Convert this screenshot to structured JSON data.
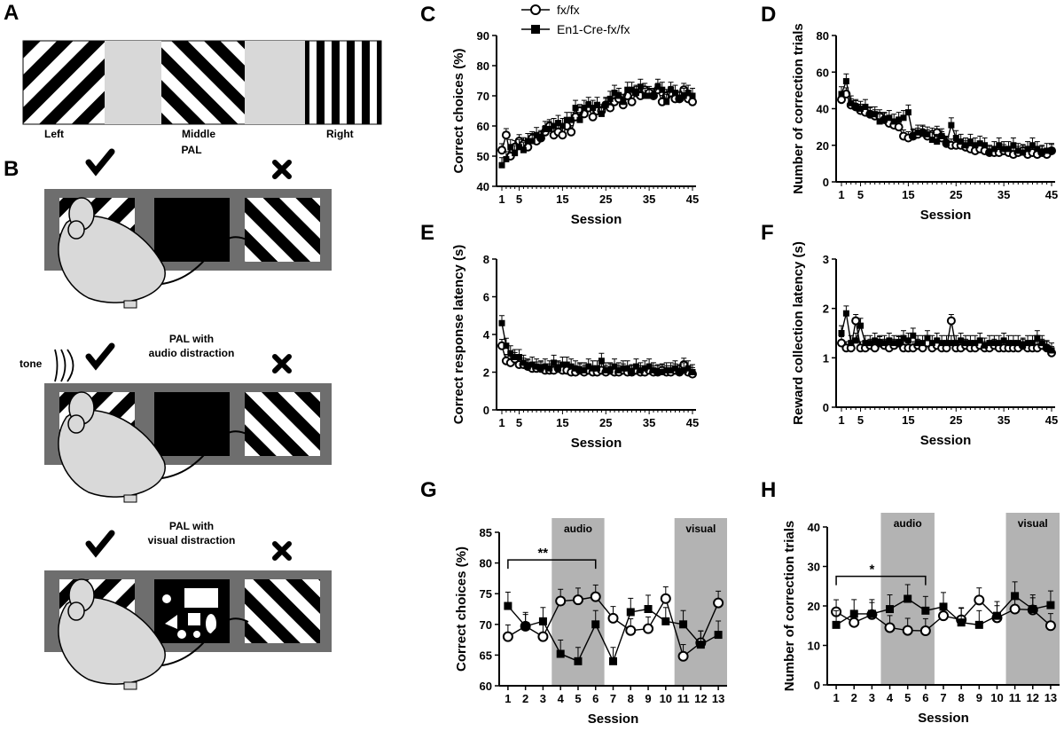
{
  "panel_letters": {
    "A": "A",
    "B": "B",
    "C": "C",
    "D": "D",
    "E": "E",
    "F": "F",
    "G": "G",
    "H": "H"
  },
  "panel_a": {
    "left": "Left",
    "middle": "Middle",
    "right": "Right"
  },
  "panel_b": {
    "pal_title": "PAL",
    "audio_title_1": "PAL with",
    "audio_title_2": "audio distraction",
    "visual_title_1": "PAL with",
    "visual_title_2": "visual distraction",
    "tone": "tone"
  },
  "legend": {
    "fx": "fx/fx",
    "en1": "En1-Cre-fx/fx"
  },
  "chart_data": [
    {
      "id": "C",
      "type": "line",
      "xlabel": "Session",
      "ylabel": "Correct choices (%)",
      "xlim": [
        1,
        45
      ],
      "ylim": [
        40,
        90
      ],
      "xticks": [
        1,
        5,
        15,
        25,
        35,
        45
      ],
      "yticks": [
        40,
        50,
        60,
        70,
        80,
        90
      ],
      "series": [
        {
          "name": "fx/fx",
          "marker": "circle",
          "values": [
            52,
            57,
            50,
            53,
            55,
            54,
            53,
            56,
            55,
            56,
            58,
            60,
            57,
            58,
            57,
            60,
            58,
            63,
            65,
            64,
            66,
            63,
            65,
            65,
            67,
            66,
            68,
            69,
            67,
            70,
            68,
            71,
            70,
            72,
            71,
            70,
            72,
            68,
            70,
            71,
            69,
            69,
            72,
            69,
            68
          ]
        },
        {
          "name": "En1-Cre-fx/fx",
          "marker": "square",
          "values": [
            47,
            49,
            53,
            51,
            53,
            52,
            55,
            55,
            57,
            56,
            59,
            59,
            60,
            61,
            60,
            62,
            62,
            66,
            62,
            66,
            67,
            66,
            67,
            64,
            67,
            69,
            71,
            70,
            68,
            72,
            72,
            71,
            73,
            70,
            70,
            70,
            73,
            72,
            68,
            72,
            71,
            69,
            70,
            71,
            70
          ]
        }
      ]
    },
    {
      "id": "D",
      "type": "line",
      "xlabel": "Session",
      "ylabel": "Number of correction trials",
      "xlim": [
        1,
        45
      ],
      "ylim": [
        0,
        80
      ],
      "xticks": [
        1,
        5,
        15,
        25,
        35,
        45
      ],
      "yticks": [
        0,
        20,
        40,
        60,
        80
      ],
      "series": [
        {
          "name": "fx/fx",
          "marker": "circle",
          "values": [
            45,
            48,
            42,
            41,
            39,
            38,
            37,
            36,
            36,
            34,
            32,
            31,
            30,
            25,
            24,
            25,
            26,
            27,
            25,
            26,
            27,
            24,
            21,
            20,
            20,
            20,
            19,
            18,
            17,
            18,
            17,
            16,
            16,
            16,
            17,
            16,
            15,
            16,
            17,
            15,
            16,
            15,
            16,
            15,
            17
          ]
        },
        {
          "name": "En1-Cre-fx/fx",
          "marker": "square",
          "values": [
            48,
            55,
            43,
            41,
            40,
            41,
            37,
            37,
            33,
            34,
            35,
            33,
            34,
            35,
            38,
            25,
            27,
            27,
            26,
            23,
            22,
            25,
            21,
            31,
            24,
            22,
            20,
            22,
            20,
            21,
            20,
            16,
            18,
            20,
            18,
            18,
            20,
            17,
            16,
            18,
            20,
            18,
            16,
            17,
            17
          ]
        }
      ]
    },
    {
      "id": "E",
      "type": "line",
      "xlabel": "Session",
      "ylabel": "Correct response latency (s)",
      "xlim": [
        1,
        45
      ],
      "ylim": [
        0,
        8
      ],
      "xticks": [
        1,
        5,
        15,
        25,
        35,
        45
      ],
      "yticks": [
        0,
        2,
        4,
        6,
        8
      ],
      "series": [
        {
          "name": "fx/fx",
          "marker": "circle",
          "values": [
            3.4,
            2.6,
            2.5,
            2.7,
            2.4,
            2.4,
            2.3,
            2.2,
            2.2,
            2.2,
            2.1,
            2.1,
            2.1,
            2.2,
            2.1,
            2.1,
            2.0,
            2.0,
            2.1,
            2.0,
            2.1,
            2.0,
            2.0,
            2.1,
            2.0,
            2.1,
            2.0,
            2.0,
            2.1,
            2.0,
            2.0,
            2.1,
            2.0,
            2.0,
            2.1,
            2.0,
            2.0,
            2.1,
            2.0,
            2.0,
            2.1,
            2.0,
            2.4,
            2.0,
            1.9
          ]
        },
        {
          "name": "En1-Cre-fx/fx",
          "marker": "square",
          "values": [
            4.6,
            3.4,
            3.0,
            2.8,
            2.8,
            2.5,
            2.3,
            2.4,
            2.3,
            2.2,
            2.3,
            2.2,
            2.5,
            2.2,
            2.4,
            2.4,
            2.3,
            2.2,
            2.1,
            2.1,
            2.3,
            2.2,
            2.2,
            2.6,
            2.1,
            2.1,
            2.3,
            2.1,
            2.2,
            2.2,
            2.0,
            2.3,
            2.1,
            2.2,
            2.3,
            2.1,
            2.0,
            2.0,
            2.1,
            2.1,
            2.2,
            2.0,
            2.1,
            2.2,
            2.0
          ]
        }
      ]
    },
    {
      "id": "F",
      "type": "line",
      "xlabel": "Session",
      "ylabel": "Reward collection latency (s)",
      "xlim": [
        1,
        45
      ],
      "ylim": [
        0,
        3
      ],
      "xticks": [
        1,
        5,
        15,
        25,
        35,
        45
      ],
      "yticks": [
        0,
        1,
        2,
        3
      ],
      "series": [
        {
          "name": "fx/fx",
          "marker": "circle",
          "values": [
            1.3,
            1.2,
            1.2,
            1.75,
            1.2,
            1.2,
            1.25,
            1.2,
            1.3,
            1.25,
            1.2,
            1.25,
            1.3,
            1.2,
            1.2,
            1.2,
            1.25,
            1.2,
            1.3,
            1.2,
            1.25,
            1.2,
            1.2,
            1.75,
            1.2,
            1.2,
            1.25,
            1.2,
            1.2,
            1.25,
            1.2,
            1.2,
            1.25,
            1.2,
            1.2,
            1.2,
            1.2,
            1.2,
            1.25,
            1.2,
            1.2,
            1.2,
            1.25,
            1.2,
            1.1
          ]
        },
        {
          "name": "En1-Cre-fx/fx",
          "marker": "square",
          "values": [
            1.5,
            1.9,
            1.3,
            1.35,
            1.65,
            1.3,
            1.3,
            1.35,
            1.3,
            1.3,
            1.35,
            1.3,
            1.3,
            1.4,
            1.35,
            1.45,
            1.3,
            1.3,
            1.4,
            1.3,
            1.35,
            1.3,
            1.3,
            1.3,
            1.3,
            1.35,
            1.3,
            1.3,
            1.3,
            1.35,
            1.25,
            1.3,
            1.3,
            1.3,
            1.35,
            1.3,
            1.3,
            1.3,
            1.25,
            1.3,
            1.3,
            1.4,
            1.3,
            1.2,
            1.15
          ]
        }
      ]
    },
    {
      "id": "G",
      "type": "line",
      "xlabel": "Session",
      "ylabel": "Correct choices (%)",
      "categories": [
        "1",
        "2",
        "3",
        "4",
        "5",
        "6",
        "7",
        "8",
        "9",
        "10",
        "11",
        "12",
        "13"
      ],
      "ylim": [
        60,
        85
      ],
      "yticks": [
        60,
        65,
        70,
        75,
        80,
        85
      ],
      "shaded": [
        {
          "from": 4,
          "to": 6,
          "label": "audio"
        },
        {
          "from": 11,
          "to": 13,
          "label": "visual"
        }
      ],
      "significance": {
        "from": 1,
        "to": 6,
        "label": "**",
        "y": 80.5
      },
      "series": [
        {
          "name": "fx/fx",
          "marker": "circle",
          "values": [
            68,
            69.7,
            68,
            73.8,
            74,
            74.5,
            71,
            69,
            69.3,
            74.2,
            64.8,
            67,
            73.5
          ]
        },
        {
          "name": "En1-Cre-fx/fx",
          "marker": "square",
          "values": [
            73,
            69.7,
            70.5,
            65.2,
            64,
            70,
            64,
            72,
            72.5,
            70.5,
            70,
            66.7,
            68.3
          ]
        }
      ]
    },
    {
      "id": "H",
      "type": "line",
      "xlabel": "Session",
      "ylabel": "Number of correction trials",
      "categories": [
        "1",
        "2",
        "3",
        "4",
        "5",
        "6",
        "7",
        "8",
        "9",
        "10",
        "11",
        "12",
        "13"
      ],
      "ylim": [
        0,
        40
      ],
      "yticks": [
        0,
        10,
        20,
        30,
        40
      ],
      "shaded": [
        {
          "from": 4,
          "to": 6,
          "label": "audio"
        },
        {
          "from": 11,
          "to": 13,
          "label": "visual"
        }
      ],
      "significance": {
        "from": 1,
        "to": 6,
        "label": "*",
        "y": 27.5
      },
      "series": [
        {
          "name": "fx/fx",
          "marker": "circle",
          "values": [
            18.5,
            15.8,
            17.8,
            14.5,
            13.8,
            13.7,
            17.5,
            16.5,
            21.5,
            17,
            19.2,
            19,
            15
          ]
        },
        {
          "name": "En1-Cre-fx/fx",
          "marker": "square",
          "values": [
            15.2,
            18,
            18,
            19.2,
            21.8,
            18.8,
            19.8,
            15.8,
            15.2,
            17.5,
            22.5,
            19.2,
            20.2
          ]
        }
      ]
    }
  ]
}
